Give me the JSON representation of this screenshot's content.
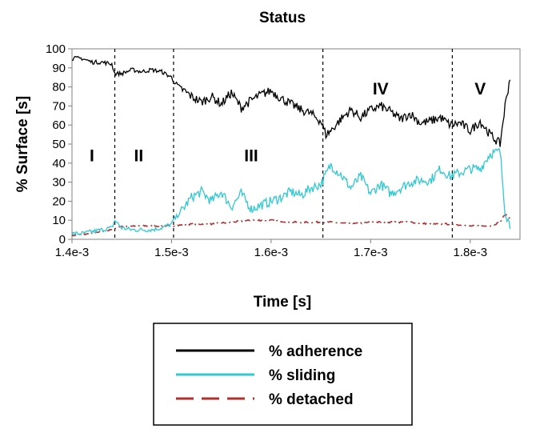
{
  "chart_data": {
    "type": "line",
    "title": "Status",
    "xlabel": "Time [s]",
    "ylabel": "% Surface [s]",
    "xlim": [
      0.0014,
      0.00185
    ],
    "ylim": [
      0,
      100
    ],
    "xticks": [
      0.0014,
      0.0015,
      0.0016,
      0.0017,
      0.0018
    ],
    "xtick_labels": [
      "1.4e-3",
      "1.5e-3",
      "1.6e-3",
      "1.7e-3",
      "1.8e-3"
    ],
    "yticks": [
      0,
      10,
      20,
      30,
      40,
      50,
      60,
      70,
      80,
      90,
      100
    ],
    "ytick_labels": [
      "0",
      "10",
      "20",
      "30",
      "40",
      "50",
      "60",
      "70",
      "80",
      "90",
      "100"
    ],
    "regions": [
      {
        "label": "I",
        "x": 0.00142,
        "y": 44
      },
      {
        "label": "II",
        "x": 0.001467,
        "y": 44
      },
      {
        "label": "III",
        "x": 0.00158,
        "y": 44
      },
      {
        "label": "IV",
        "x": 0.00171,
        "y": 79
      },
      {
        "label": "V",
        "x": 0.00181,
        "y": 79
      }
    ],
    "dividers": [
      0.001443,
      0.001502,
      0.001652,
      0.001782
    ],
    "series": [
      {
        "name": "% adherence",
        "color": "#000000",
        "style": "solid",
        "x": [
          0.0014,
          0.00141,
          0.00142,
          0.00143,
          0.00144,
          0.001443,
          0.00145,
          0.00146,
          0.00147,
          0.00148,
          0.00149,
          0.0015,
          0.001502,
          0.00151,
          0.00152,
          0.00153,
          0.00154,
          0.00155,
          0.00156,
          0.00157,
          0.00158,
          0.00159,
          0.0016,
          0.00161,
          0.00162,
          0.00163,
          0.00164,
          0.00165,
          0.001655,
          0.00166,
          0.00167,
          0.00168,
          0.00169,
          0.0017,
          0.00171,
          0.00172,
          0.00173,
          0.00174,
          0.00175,
          0.00176,
          0.00177,
          0.00178,
          0.00179,
          0.0018,
          0.00181,
          0.00182,
          0.00183,
          0.001835,
          0.00184
        ],
        "values": [
          95,
          95,
          93,
          93,
          92,
          87,
          87,
          89,
          88,
          89,
          88,
          85,
          83,
          79,
          75,
          72,
          75,
          71,
          77,
          69,
          73,
          76,
          78,
          74,
          71,
          68,
          66,
          62,
          55,
          57,
          63,
          68,
          64,
          68,
          70,
          67,
          63,
          66,
          61,
          62,
          64,
          60,
          61,
          57,
          62,
          55,
          50,
          70,
          85
        ]
      },
      {
        "name": "% sliding",
        "color": "#33c8d2",
        "style": "solid",
        "x": [
          0.0014,
          0.00141,
          0.00142,
          0.00143,
          0.00144,
          0.001443,
          0.00145,
          0.00146,
          0.00147,
          0.00148,
          0.00149,
          0.0015,
          0.001502,
          0.00151,
          0.00152,
          0.00153,
          0.00154,
          0.00155,
          0.00156,
          0.00157,
          0.00158,
          0.00159,
          0.0016,
          0.00161,
          0.00162,
          0.00163,
          0.00164,
          0.00165,
          0.001655,
          0.00166,
          0.00167,
          0.00168,
          0.00169,
          0.0017,
          0.00171,
          0.00172,
          0.00173,
          0.00174,
          0.00175,
          0.00176,
          0.00177,
          0.00178,
          0.00179,
          0.0018,
          0.00181,
          0.00182,
          0.00183,
          0.001835,
          0.00184
        ],
        "values": [
          3,
          3,
          4,
          5,
          6,
          10,
          6,
          5,
          5,
          5,
          6,
          8,
          10,
          15,
          22,
          25,
          20,
          25,
          17,
          24,
          16,
          18,
          20,
          22,
          25,
          23,
          27,
          29,
          34,
          39,
          34,
          27,
          33,
          24,
          29,
          24,
          27,
          30,
          31,
          31,
          37,
          33,
          35,
          37,
          37,
          45,
          46,
          15,
          7
        ]
      },
      {
        "name": "% detached",
        "color": "#b03030",
        "style": "dashed",
        "x": [
          0.0014,
          0.00142,
          0.00144,
          0.00145,
          0.00146,
          0.00148,
          0.0015,
          0.00152,
          0.00154,
          0.00156,
          0.00158,
          0.0016,
          0.00162,
          0.00164,
          0.00166,
          0.00168,
          0.0017,
          0.00172,
          0.00174,
          0.00176,
          0.00178,
          0.0018,
          0.00182,
          0.00183,
          0.001835,
          0.00184
        ],
        "values": [
          2,
          3,
          5,
          7,
          7,
          7,
          7,
          8,
          8,
          9,
          10,
          10,
          9,
          9,
          9,
          8,
          9,
          9,
          9,
          8,
          8,
          7,
          7,
          9,
          13,
          11
        ]
      }
    ],
    "legend": {
      "position": "bottom-center",
      "labels": [
        "% adherence",
        "% sliding",
        "% detached"
      ]
    },
    "grid": false
  }
}
